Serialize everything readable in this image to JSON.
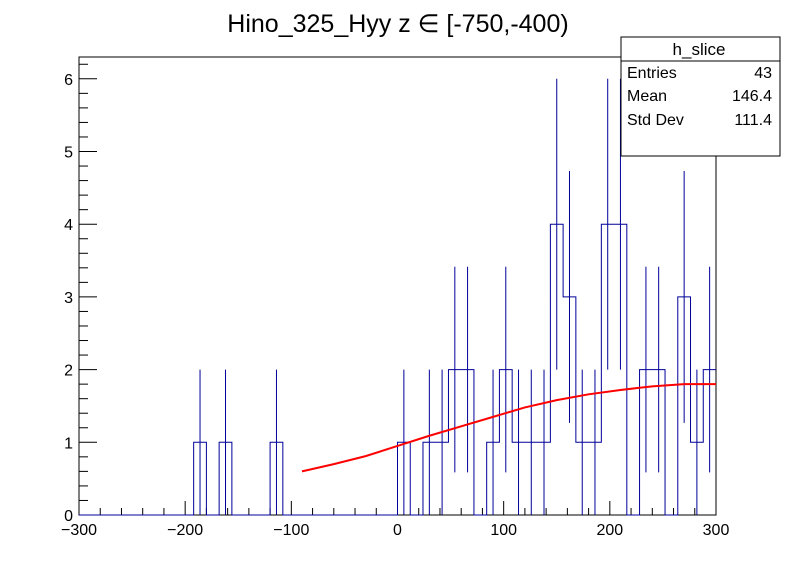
{
  "chart_data": {
    "type": "histogram",
    "title": "Hino_325_Hyy z  ∈ [-750,-400)",
    "xlabel": "",
    "ylabel": "",
    "xlim": [
      -300,
      300
    ],
    "ylim": [
      0,
      6.3
    ],
    "x_tick_labels": [
      "−300",
      "−200",
      "−100",
      "0",
      "100",
      "200",
      "300"
    ],
    "x_ticks": [
      -300,
      -200,
      -100,
      0,
      100,
      200,
      300
    ],
    "y_tick_labels": [
      "0",
      "1",
      "2",
      "3",
      "4",
      "5",
      "6"
    ],
    "y_ticks": [
      0,
      1,
      2,
      3,
      4,
      5,
      6
    ],
    "bin_width": 12,
    "bins": [
      {
        "x_low": -300,
        "count": 0
      },
      {
        "x_low": -288,
        "count": 0
      },
      {
        "x_low": -276,
        "count": 0
      },
      {
        "x_low": -264,
        "count": 0
      },
      {
        "x_low": -252,
        "count": 0
      },
      {
        "x_low": -240,
        "count": 0
      },
      {
        "x_low": -228,
        "count": 0
      },
      {
        "x_low": -216,
        "count": 0
      },
      {
        "x_low": -204,
        "count": 0
      },
      {
        "x_low": -192,
        "count": 1
      },
      {
        "x_low": -180,
        "count": 0
      },
      {
        "x_low": -168,
        "count": 1
      },
      {
        "x_low": -156,
        "count": 0
      },
      {
        "x_low": -144,
        "count": 0
      },
      {
        "x_low": -132,
        "count": 0
      },
      {
        "x_low": -120,
        "count": 1
      },
      {
        "x_low": -108,
        "count": 0
      },
      {
        "x_low": -96,
        "count": 0
      },
      {
        "x_low": -84,
        "count": 0
      },
      {
        "x_low": -72,
        "count": 0
      },
      {
        "x_low": -60,
        "count": 0
      },
      {
        "x_low": -48,
        "count": 0
      },
      {
        "x_low": -36,
        "count": 0
      },
      {
        "x_low": -24,
        "count": 0
      },
      {
        "x_low": -12,
        "count": 0
      },
      {
        "x_low": 0,
        "count": 1
      },
      {
        "x_low": 12,
        "count": 0
      },
      {
        "x_low": 24,
        "count": 1
      },
      {
        "x_low": 36,
        "count": 1
      },
      {
        "x_low": 48,
        "count": 2
      },
      {
        "x_low": 60,
        "count": 2
      },
      {
        "x_low": 72,
        "count": 0
      },
      {
        "x_low": 84,
        "count": 1
      },
      {
        "x_low": 96,
        "count": 2
      },
      {
        "x_low": 108,
        "count": 1
      },
      {
        "x_low": 120,
        "count": 1
      },
      {
        "x_low": 132,
        "count": 1
      },
      {
        "x_low": 144,
        "count": 4
      },
      {
        "x_low": 156,
        "count": 3
      },
      {
        "x_low": 168,
        "count": 1
      },
      {
        "x_low": 180,
        "count": 1
      },
      {
        "x_low": 192,
        "count": 4
      },
      {
        "x_low": 204,
        "count": 4
      },
      {
        "x_low": 216,
        "count": 0
      },
      {
        "x_low": 228,
        "count": 2
      },
      {
        "x_low": 240,
        "count": 2
      },
      {
        "x_low": 252,
        "count": 0
      },
      {
        "x_low": 264,
        "count": 3
      },
      {
        "x_low": 276,
        "count": 1
      },
      {
        "x_low": 288,
        "count": 2
      }
    ],
    "fit_curve": {
      "color": "#ff0000",
      "x": [
        -90,
        -60,
        -30,
        0,
        30,
        60,
        90,
        120,
        150,
        180,
        210,
        240,
        270,
        300
      ],
      "y": [
        0.6,
        0.7,
        0.81,
        0.95,
        1.09,
        1.22,
        1.35,
        1.48,
        1.58,
        1.66,
        1.72,
        1.77,
        1.8,
        1.8
      ]
    },
    "histogram_color": "#000099",
    "legend_position": "top-right",
    "stats_box": {
      "title": "h_slice",
      "rows": [
        {
          "label": "Entries",
          "value": "43"
        },
        {
          "label": "Mean",
          "value": "146.4"
        },
        {
          "label": "Std Dev",
          "value": "111.4"
        }
      ]
    }
  }
}
